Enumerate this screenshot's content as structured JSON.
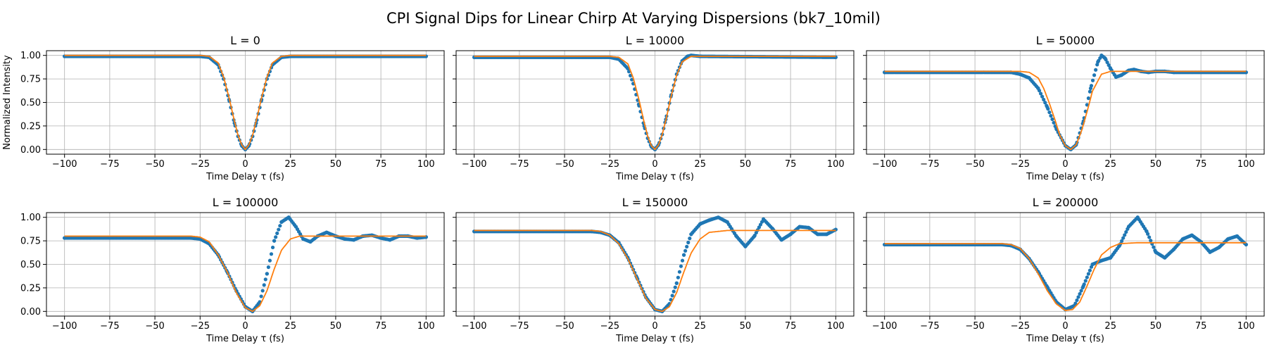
{
  "figure": {
    "title": "CPI Signal Dips for Linear Chirp At Varying Dispersions (bk7_10mil)",
    "colors": {
      "measured": "#1f77b4",
      "fit": "#ff7f0e",
      "grid": "#b0b0b0"
    }
  },
  "chart_data": [
    {
      "type": "scatter",
      "title": "L = 0",
      "xlabel": "Time Delay τ (fs)",
      "ylabel": "Normalized Intensity",
      "xlim": [
        -100,
        100
      ],
      "ylim": [
        0,
        1
      ],
      "xticks": [
        -100,
        -75,
        -50,
        -25,
        0,
        25,
        50,
        75,
        100
      ],
      "xtick_labels": [
        "−100",
        "−75",
        "−50",
        "−25",
        "0",
        "25",
        "50",
        "75",
        "100"
      ],
      "yticks": [
        0,
        0.25,
        0.5,
        0.75,
        1.0
      ],
      "ytick_labels": [
        "0.00",
        "0.25",
        "0.50",
        "0.75",
        "1.00"
      ],
      "grid": true,
      "series": [
        {
          "kind": "scatter",
          "x": [
            -100,
            -25,
            -20,
            -15,
            -12,
            -9,
            -6,
            -4,
            -2,
            0,
            2,
            4,
            6,
            9,
            12,
            15,
            20,
            25,
            100
          ],
          "y": [
            0.99,
            0.99,
            0.98,
            0.9,
            0.75,
            0.53,
            0.28,
            0.14,
            0.04,
            0.0,
            0.04,
            0.14,
            0.28,
            0.53,
            0.75,
            0.9,
            0.98,
            0.99,
            0.99
          ]
        },
        {
          "kind": "line",
          "x": [
            -100,
            -25,
            -20,
            -15,
            -12,
            -9,
            -6,
            -4,
            -2,
            0,
            2,
            4,
            6,
            9,
            12,
            15,
            20,
            25,
            100
          ],
          "y": [
            1.0,
            1.0,
            0.99,
            0.92,
            0.77,
            0.55,
            0.3,
            0.15,
            0.05,
            0.0,
            0.05,
            0.15,
            0.3,
            0.55,
            0.77,
            0.92,
            0.99,
            1.0,
            1.0
          ]
        }
      ]
    },
    {
      "type": "scatter",
      "title": "L = 10000",
      "xlabel": "Time Delay τ (fs)",
      "ylabel": "",
      "xlim": [
        -100,
        100
      ],
      "ylim": [
        0,
        1
      ],
      "xticks": [
        -100,
        -75,
        -50,
        -25,
        0,
        25,
        50,
        75,
        100
      ],
      "xtick_labels": [
        "−100",
        "−75",
        "−50",
        "−25",
        "0",
        "25",
        "50",
        "75",
        "100"
      ],
      "yticks": [
        0,
        0.25,
        0.5,
        0.75,
        1.0
      ],
      "ytick_labels": [
        "",
        "",
        "",
        "",
        ""
      ],
      "grid": true,
      "series": [
        {
          "kind": "scatter",
          "x": [
            -100,
            -25,
            -20,
            -15,
            -12,
            -9,
            -6,
            -4,
            -2,
            0,
            2,
            4,
            6,
            9,
            12,
            15,
            18,
            20,
            25,
            100
          ],
          "y": [
            0.98,
            0.98,
            0.96,
            0.86,
            0.7,
            0.48,
            0.25,
            0.12,
            0.03,
            0.0,
            0.05,
            0.16,
            0.32,
            0.58,
            0.8,
            0.94,
            0.99,
            1.0,
            0.99,
            0.98
          ]
        },
        {
          "kind": "line",
          "x": [
            -100,
            -25,
            -20,
            -15,
            -12,
            -9,
            -6,
            -4,
            -2,
            0,
            2,
            4,
            6,
            9,
            12,
            15,
            20,
            25,
            100
          ],
          "y": [
            0.99,
            0.99,
            0.98,
            0.91,
            0.76,
            0.54,
            0.29,
            0.14,
            0.04,
            0.0,
            0.05,
            0.16,
            0.31,
            0.57,
            0.79,
            0.93,
            0.99,
            0.99,
            0.99
          ]
        }
      ]
    },
    {
      "type": "scatter",
      "title": "L = 50000",
      "xlabel": "Time Delay τ (fs)",
      "ylabel": "",
      "xlim": [
        -100,
        100
      ],
      "ylim": [
        0,
        1
      ],
      "xticks": [
        -100,
        -75,
        -50,
        -25,
        0,
        25,
        50,
        75,
        100
      ],
      "xtick_labels": [
        "−100",
        "−75",
        "−50",
        "−25",
        "0",
        "25",
        "50",
        "75",
        "100"
      ],
      "yticks": [
        0,
        0.25,
        0.5,
        0.75,
        1.0
      ],
      "ytick_labels": [
        "",
        "",
        "",
        "",
        ""
      ],
      "grid": true,
      "series": [
        {
          "kind": "scatter",
          "x": [
            -100,
            -30,
            -25,
            -20,
            -15,
            -10,
            -5,
            0,
            3,
            6,
            10,
            14,
            18,
            20,
            22,
            25,
            28,
            31,
            35,
            38,
            42,
            46,
            50,
            55,
            60,
            100
          ],
          "y": [
            0.82,
            0.82,
            0.8,
            0.76,
            0.65,
            0.45,
            0.22,
            0.04,
            0.0,
            0.05,
            0.3,
            0.65,
            0.93,
            1.0,
            0.97,
            0.86,
            0.77,
            0.79,
            0.84,
            0.85,
            0.83,
            0.82,
            0.83,
            0.83,
            0.82,
            0.82
          ]
        },
        {
          "kind": "line",
          "x": [
            -100,
            -25,
            -20,
            -15,
            -12,
            -9,
            -6,
            -3,
            0,
            3,
            6,
            9,
            12,
            15,
            20,
            25,
            100
          ],
          "y": [
            0.83,
            0.83,
            0.82,
            0.76,
            0.65,
            0.5,
            0.33,
            0.15,
            0.04,
            0.0,
            0.05,
            0.2,
            0.4,
            0.62,
            0.8,
            0.83,
            0.83
          ]
        }
      ]
    },
    {
      "type": "scatter",
      "title": "L = 100000",
      "xlabel": "Time Delay τ (fs)",
      "ylabel": "",
      "xlim": [
        -100,
        100
      ],
      "ylim": [
        0,
        1
      ],
      "xticks": [
        -100,
        -75,
        -50,
        -25,
        0,
        25,
        50,
        75,
        100
      ],
      "xtick_labels": [
        "−100",
        "−75",
        "−50",
        "−25",
        "0",
        "25",
        "50",
        "75",
        "100"
      ],
      "yticks": [
        0,
        0.25,
        0.5,
        0.75,
        1.0
      ],
      "ytick_labels": [
        "0.00",
        "0.25",
        "0.50",
        "0.75",
        "1.00"
      ],
      "grid": true,
      "series": [
        {
          "kind": "scatter",
          "x": [
            -100,
            -30,
            -25,
            -20,
            -15,
            -10,
            -5,
            0,
            4,
            8,
            12,
            16,
            20,
            24,
            28,
            32,
            36,
            40,
            45,
            50,
            55,
            60,
            65,
            70,
            75,
            80,
            85,
            90,
            95,
            100
          ],
          "y": [
            0.78,
            0.78,
            0.77,
            0.72,
            0.6,
            0.42,
            0.22,
            0.05,
            0.0,
            0.1,
            0.4,
            0.75,
            0.95,
            1.0,
            0.9,
            0.77,
            0.74,
            0.8,
            0.84,
            0.8,
            0.77,
            0.76,
            0.8,
            0.81,
            0.78,
            0.76,
            0.8,
            0.8,
            0.78,
            0.79
          ]
        },
        {
          "kind": "line",
          "x": [
            -100,
            -30,
            -25,
            -20,
            -15,
            -10,
            -5,
            0,
            4,
            8,
            12,
            16,
            20,
            25,
            30,
            35,
            100
          ],
          "y": [
            0.8,
            0.8,
            0.79,
            0.74,
            0.6,
            0.42,
            0.2,
            0.04,
            0.0,
            0.06,
            0.22,
            0.45,
            0.65,
            0.77,
            0.8,
            0.8,
            0.8
          ]
        }
      ]
    },
    {
      "type": "scatter",
      "title": "L = 150000",
      "xlabel": "Time Delay τ (fs)",
      "ylabel": "",
      "xlim": [
        -100,
        100
      ],
      "ylim": [
        0,
        1
      ],
      "xticks": [
        -100,
        -75,
        -50,
        -25,
        0,
        25,
        50,
        75,
        100
      ],
      "xtick_labels": [
        "−100",
        "−75",
        "−50",
        "−25",
        "0",
        "25",
        "50",
        "75",
        "100"
      ],
      "yticks": [
        0,
        0.25,
        0.5,
        0.75,
        1.0
      ],
      "ytick_labels": [
        "",
        "",
        "",
        "",
        ""
      ],
      "grid": true,
      "series": [
        {
          "kind": "scatter",
          "x": [
            -100,
            -35,
            -30,
            -25,
            -20,
            -15,
            -10,
            -5,
            0,
            4,
            8,
            12,
            16,
            20,
            25,
            30,
            35,
            40,
            45,
            50,
            55,
            60,
            65,
            70,
            75,
            80,
            85,
            90,
            95,
            100
          ],
          "y": [
            0.85,
            0.85,
            0.84,
            0.81,
            0.73,
            0.57,
            0.36,
            0.15,
            0.02,
            0.0,
            0.08,
            0.3,
            0.6,
            0.82,
            0.93,
            0.97,
            1.0,
            0.95,
            0.8,
            0.69,
            0.8,
            0.98,
            0.88,
            0.76,
            0.82,
            0.9,
            0.89,
            0.82,
            0.82,
            0.87
          ]
        },
        {
          "kind": "line",
          "x": [
            -100,
            -35,
            -30,
            -25,
            -20,
            -15,
            -10,
            -5,
            0,
            4,
            8,
            12,
            16,
            20,
            25,
            30,
            40,
            50,
            100
          ],
          "y": [
            0.86,
            0.86,
            0.85,
            0.81,
            0.72,
            0.56,
            0.35,
            0.14,
            0.02,
            0.0,
            0.05,
            0.2,
            0.42,
            0.62,
            0.77,
            0.84,
            0.86,
            0.86,
            0.86
          ]
        }
      ]
    },
    {
      "type": "scatter",
      "title": "L = 200000",
      "xlabel": "Time Delay τ (fs)",
      "ylabel": "",
      "xlim": [
        -100,
        100
      ],
      "ylim": [
        0,
        1
      ],
      "xticks": [
        -100,
        -75,
        -50,
        -25,
        0,
        25,
        50,
        75,
        100
      ],
      "xtick_labels": [
        "−100",
        "−75",
        "−50",
        "−25",
        "0",
        "25",
        "50",
        "75",
        "100"
      ],
      "yticks": [
        0,
        0.25,
        0.5,
        0.75,
        1.0
      ],
      "ytick_labels": [
        "",
        "",
        "",
        "",
        ""
      ],
      "grid": true,
      "series": [
        {
          "kind": "scatter",
          "x": [
            -100,
            -35,
            -30,
            -25,
            -20,
            -15,
            -10,
            -5,
            0,
            5,
            10,
            15,
            20,
            25,
            30,
            35,
            40,
            45,
            50,
            55,
            60,
            65,
            70,
            75,
            80,
            85,
            90,
            95,
            100
          ],
          "y": [
            0.71,
            0.71,
            0.7,
            0.66,
            0.56,
            0.42,
            0.26,
            0.1,
            0.02,
            0.06,
            0.27,
            0.5,
            0.54,
            0.57,
            0.7,
            0.9,
            1.0,
            0.85,
            0.63,
            0.57,
            0.66,
            0.77,
            0.81,
            0.74,
            0.63,
            0.68,
            0.77,
            0.8,
            0.71
          ]
        },
        {
          "kind": "line",
          "x": [
            -100,
            -35,
            -30,
            -25,
            -20,
            -15,
            -10,
            -5,
            0,
            4,
            8,
            12,
            16,
            20,
            25,
            30,
            40,
            50,
            100
          ],
          "y": [
            0.72,
            0.72,
            0.71,
            0.67,
            0.56,
            0.4,
            0.22,
            0.08,
            0.01,
            0.02,
            0.1,
            0.27,
            0.45,
            0.6,
            0.68,
            0.72,
            0.73,
            0.73,
            0.73
          ]
        }
      ]
    }
  ]
}
